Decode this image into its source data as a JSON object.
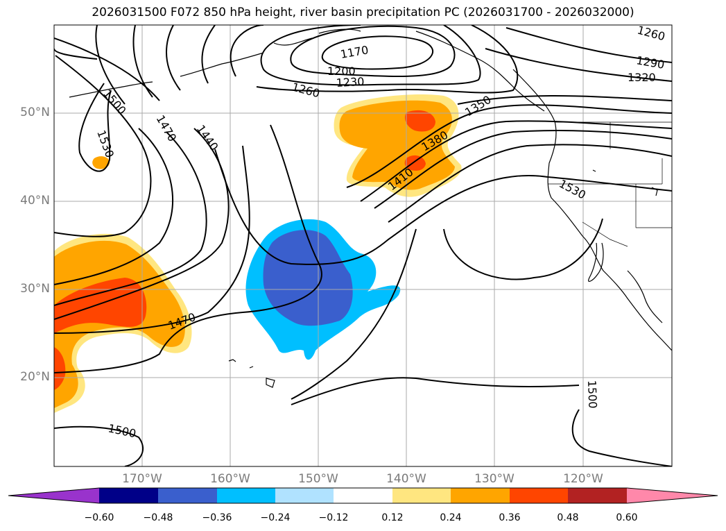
{
  "title": "2026031500 F072 850 hPa height, river basin precipitation PC (2026031700 - 2026032000)",
  "latitude_labels": [
    "50°N",
    "40°N",
    "30°N",
    "20°N"
  ],
  "longitude_labels": [
    "170°W",
    "160°W",
    "150°W",
    "140°W",
    "130°W",
    "120°W"
  ],
  "contour_labels": [
    "1170",
    "1200",
    "1230",
    "1260",
    "1260",
    "1290",
    "1320",
    "1350",
    "1380",
    "1410",
    "1440",
    "1470",
    "1470",
    "1500",
    "1500",
    "1500",
    "1530",
    "1530"
  ],
  "colorbar": {
    "ticks": [
      "−0.60",
      "−0.48",
      "−0.36",
      "−0.24",
      "−0.12",
      "0.12",
      "0.24",
      "0.36",
      "0.48",
      "0.60"
    ],
    "colors": [
      "#9933cc",
      "#000088",
      "#3a5fcd",
      "#00bfff",
      "#b0e2ff",
      "#ffffff",
      "#ffe680",
      "#ffa500",
      "#ff4500",
      "#b22222",
      "#ff88aa"
    ]
  },
  "colors": {
    "positive_light": "#ffe680",
    "positive_mid": "#ffa500",
    "positive_strong": "#ff4500",
    "negative_light": "#00bfff",
    "negative_mid": "#3a5fcd",
    "gridline": "#aaaaaa",
    "contour": "#000000"
  }
}
